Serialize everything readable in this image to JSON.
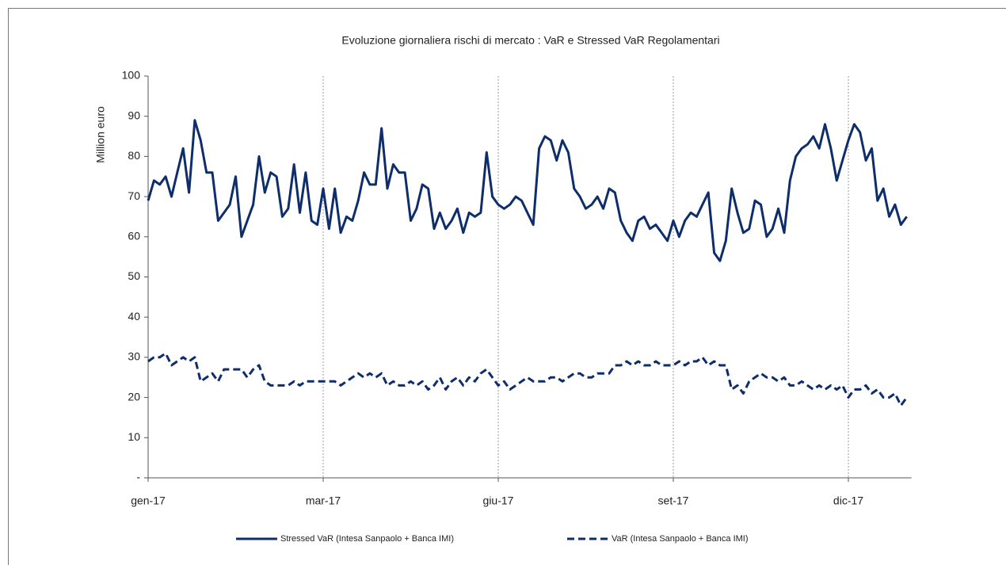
{
  "chart_data": {
    "type": "line",
    "title": "Evoluzione giornaliera rischi di mercato : VaR e Stressed VaR Regolamentari",
    "y_label": "Million euro",
    "categories": [
      "gen-17",
      null,
      null,
      null,
      null,
      null,
      null,
      null,
      null,
      null,
      null,
      null,
      null,
      null,
      null,
      null,
      null,
      null,
      null,
      null,
      null,
      null,
      null,
      null,
      null,
      null,
      null,
      null,
      null,
      null,
      "mar-17",
      null,
      null,
      null,
      null,
      null,
      null,
      null,
      null,
      null,
      null,
      null,
      null,
      null,
      null,
      null,
      null,
      null,
      null,
      null,
      null,
      null,
      null,
      null,
      null,
      null,
      null,
      null,
      null,
      null,
      "giu-17",
      null,
      null,
      null,
      null,
      null,
      null,
      null,
      null,
      null,
      null,
      null,
      null,
      null,
      null,
      null,
      null,
      null,
      null,
      null,
      null,
      null,
      null,
      null,
      null,
      null,
      null,
      null,
      null,
      null,
      "set-17",
      null,
      null,
      null,
      null,
      null,
      null,
      null,
      null,
      null,
      null,
      null,
      null,
      null,
      null,
      null,
      null,
      null,
      null,
      null,
      null,
      null,
      null,
      null,
      null,
      null,
      null,
      null,
      null,
      null,
      "dic-17",
      null,
      null,
      null,
      null,
      null,
      null,
      null,
      null,
      null,
      null
    ],
    "series": [
      {
        "name": "Stressed VaR (Intesa Sanpaolo + Banca IMI)",
        "color": "#0d2d6b",
        "dash": false,
        "values": [
          69,
          74,
          73,
          75,
          70,
          76,
          82,
          71,
          89,
          84,
          76,
          76,
          64,
          66,
          68,
          75,
          60,
          64,
          68,
          80,
          71,
          76,
          75,
          65,
          67,
          78,
          66,
          76,
          64,
          63,
          72,
          62,
          72,
          61,
          65,
          64,
          69,
          76,
          73,
          73,
          87,
          72,
          78,
          76,
          76,
          64,
          67,
          73,
          72,
          62,
          66,
          62,
          64,
          67,
          61,
          66,
          65,
          66,
          81,
          70,
          68,
          67,
          68,
          70,
          69,
          66,
          63,
          82,
          85,
          84,
          79,
          84,
          81,
          72,
          70,
          67,
          68,
          70,
          67,
          72,
          71,
          64,
          61,
          59,
          64,
          65,
          62,
          63,
          61,
          59,
          64,
          60,
          64,
          66,
          65,
          68,
          71,
          56,
          54,
          59,
          72,
          66,
          61,
          62,
          69,
          68,
          60,
          62,
          67,
          61,
          74,
          80,
          82,
          83,
          85,
          82,
          88,
          82,
          74,
          79,
          84,
          88,
          86,
          79,
          82,
          69,
          72,
          65,
          68,
          63,
          65
        ]
      },
      {
        "name": "VaR (Intesa Sanpaolo + Banca IMI)",
        "color": "#0d2d6b",
        "dash": true,
        "values": [
          29,
          30,
          30,
          31,
          28,
          29,
          30,
          29,
          30,
          24,
          25,
          26,
          24,
          27,
          27,
          27,
          27,
          25,
          27,
          28,
          24,
          23,
          23,
          23,
          23,
          24,
          23,
          24,
          24,
          24,
          24,
          24,
          24,
          23,
          24,
          25,
          26,
          25,
          26,
          25,
          26,
          23,
          24,
          23,
          23,
          24,
          23,
          24,
          22,
          23,
          25,
          22,
          24,
          25,
          23,
          25,
          24,
          26,
          27,
          25,
          23,
          24,
          22,
          23,
          24,
          25,
          24,
          24,
          24,
          25,
          25,
          24,
          25,
          26,
          26,
          25,
          25,
          26,
          26,
          26,
          28,
          28,
          29,
          28,
          29,
          28,
          28,
          29,
          28,
          28,
          28,
          29,
          28,
          29,
          29,
          30,
          28,
          29,
          28,
          28,
          22,
          23,
          21,
          24,
          25,
          26,
          25,
          25,
          24,
          25,
          23,
          23,
          24,
          23,
          22,
          23,
          22,
          23,
          22,
          23,
          20,
          22,
          22,
          23,
          21,
          22,
          20,
          20,
          21,
          18,
          20
        ]
      }
    ],
    "ylim": [
      0,
      100
    ],
    "yticks": [
      {
        "value": 0,
        "label": "-"
      },
      10,
      20,
      30,
      40,
      50,
      60,
      70,
      80,
      90,
      100
    ],
    "grid": "x"
  }
}
